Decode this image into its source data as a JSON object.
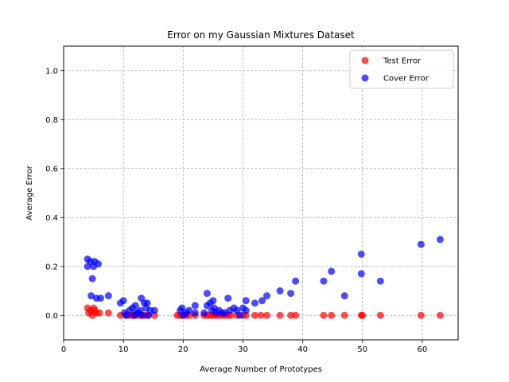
{
  "chart_data": {
    "type": "scatter",
    "title": "Error on my Gaussian Mixtures Dataset",
    "xlabel": "Average Number of Prototypes",
    "ylabel": "Average Error",
    "xlim": [
      0,
      66
    ],
    "ylim": [
      -0.1,
      1.1
    ],
    "x_ticks": [
      0,
      10,
      20,
      30,
      40,
      50,
      60
    ],
    "y_ticks": [
      0.0,
      0.2,
      0.4,
      0.6,
      0.8,
      1.0
    ],
    "x_tick_labels": [
      "0",
      "10",
      "20",
      "30",
      "40",
      "50",
      "60"
    ],
    "y_tick_labels": [
      "0.0",
      "0.2",
      "0.4",
      "0.6",
      "0.8",
      "1.0"
    ],
    "grid": true,
    "legend_position": "top-right",
    "series": [
      {
        "name": "Test Error",
        "color": "#ff0000",
        "points": [
          [
            4.0,
            0.03
          ],
          [
            4.2,
            0.01
          ],
          [
            4.5,
            0.02
          ],
          [
            4.8,
            0.0
          ],
          [
            5.0,
            0.03
          ],
          [
            5.2,
            0.02
          ],
          [
            5.5,
            0.01
          ],
          [
            6.0,
            0.01
          ],
          [
            7.5,
            0.01
          ],
          [
            9.5,
            0.0
          ],
          [
            10.5,
            0.0
          ],
          [
            11.0,
            0.0
          ],
          [
            11.5,
            0.0
          ],
          [
            12.0,
            0.0
          ],
          [
            12.5,
            0.0
          ],
          [
            13.0,
            0.0
          ],
          [
            13.5,
            0.0
          ],
          [
            14.0,
            0.0
          ],
          [
            15.2,
            0.0
          ],
          [
            19.0,
            0.0
          ],
          [
            19.5,
            0.0
          ],
          [
            20.0,
            0.0
          ],
          [
            20.5,
            0.0
          ],
          [
            21.0,
            0.0
          ],
          [
            22.0,
            0.0
          ],
          [
            23.5,
            0.0
          ],
          [
            24.0,
            0.0
          ],
          [
            24.5,
            0.0
          ],
          [
            25.0,
            0.0
          ],
          [
            25.5,
            0.0
          ],
          [
            26.0,
            0.0
          ],
          [
            26.5,
            0.0
          ],
          [
            27.0,
            0.0
          ],
          [
            27.5,
            0.0
          ],
          [
            28.0,
            0.0
          ],
          [
            29.0,
            0.0
          ],
          [
            30.0,
            0.0
          ],
          [
            30.5,
            0.0
          ],
          [
            32.0,
            0.0
          ],
          [
            33.0,
            0.0
          ],
          [
            34.0,
            0.0
          ],
          [
            36.2,
            0.0
          ],
          [
            38.0,
            0.0
          ],
          [
            38.8,
            0.0
          ],
          [
            43.5,
            0.0
          ],
          [
            44.8,
            0.0
          ],
          [
            47.0,
            0.0
          ],
          [
            49.8,
            0.0
          ],
          [
            50.0,
            0.0
          ],
          [
            53.0,
            0.0
          ],
          [
            59.8,
            0.0
          ],
          [
            63.0,
            0.0
          ]
        ]
      },
      {
        "name": "Cover Error",
        "color": "#0000ff",
        "points": [
          [
            4.0,
            0.2
          ],
          [
            4.0,
            0.23
          ],
          [
            4.5,
            0.22
          ],
          [
            4.8,
            0.15
          ],
          [
            5.0,
            0.2
          ],
          [
            5.2,
            0.22
          ],
          [
            4.6,
            0.08
          ],
          [
            5.5,
            0.07
          ],
          [
            5.8,
            0.21
          ],
          [
            6.2,
            0.07
          ],
          [
            7.5,
            0.08
          ],
          [
            9.5,
            0.05
          ],
          [
            10.0,
            0.06
          ],
          [
            10.2,
            0.01
          ],
          [
            10.5,
            0.0
          ],
          [
            11.0,
            0.02
          ],
          [
            11.5,
            0.03
          ],
          [
            12.0,
            0.04
          ],
          [
            12.5,
            0.01
          ],
          [
            12.8,
            0.02
          ],
          [
            13.0,
            0.07
          ],
          [
            13.2,
            0.0
          ],
          [
            13.5,
            0.05
          ],
          [
            13.8,
            0.03
          ],
          [
            14.0,
            0.05
          ],
          [
            14.5,
            0.02
          ],
          [
            15.2,
            0.02
          ],
          [
            11.8,
            0.0
          ],
          [
            12.2,
            0.01
          ],
          [
            14.2,
            0.0
          ],
          [
            19.5,
            0.02
          ],
          [
            19.8,
            0.03
          ],
          [
            20.0,
            0.0
          ],
          [
            20.5,
            0.01
          ],
          [
            21.0,
            0.02
          ],
          [
            22.0,
            0.04
          ],
          [
            22.0,
            0.01
          ],
          [
            23.5,
            0.01
          ],
          [
            24.0,
            0.09
          ],
          [
            24.0,
            0.04
          ],
          [
            24.5,
            0.05
          ],
          [
            24.8,
            0.02
          ],
          [
            25.0,
            0.06
          ],
          [
            25.2,
            0.03
          ],
          [
            25.5,
            0.01
          ],
          [
            26.0,
            0.02
          ],
          [
            26.5,
            0.01
          ],
          [
            27.0,
            0.01
          ],
          [
            27.5,
            0.07
          ],
          [
            27.8,
            0.02
          ],
          [
            28.5,
            0.03
          ],
          [
            29.0,
            0.02
          ],
          [
            29.5,
            0.0
          ],
          [
            30.0,
            0.03
          ],
          [
            30.5,
            0.06
          ],
          [
            30.5,
            0.02
          ],
          [
            32.0,
            0.05
          ],
          [
            33.2,
            0.06
          ],
          [
            34.0,
            0.08
          ],
          [
            36.2,
            0.1
          ],
          [
            38.0,
            0.09
          ],
          [
            38.8,
            0.14
          ],
          [
            43.5,
            0.14
          ],
          [
            44.8,
            0.18
          ],
          [
            47.0,
            0.08
          ],
          [
            49.8,
            0.25
          ],
          [
            49.8,
            0.17
          ],
          [
            53.0,
            0.14
          ],
          [
            59.8,
            0.29
          ],
          [
            63.0,
            0.31
          ]
        ]
      }
    ]
  }
}
